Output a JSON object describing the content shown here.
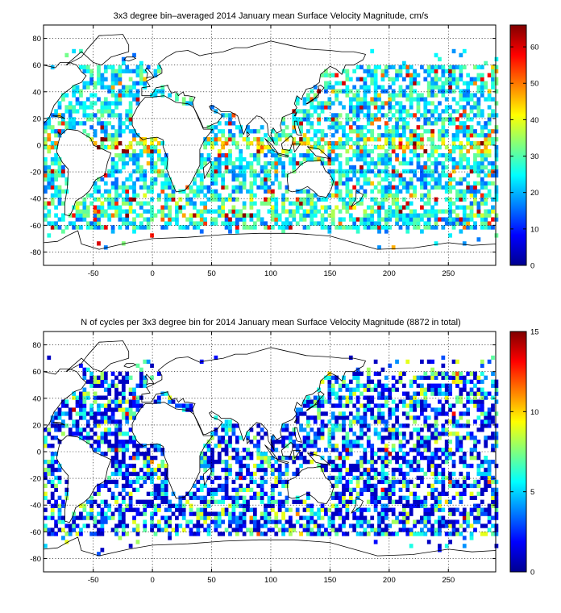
{
  "chart_data": [
    {
      "type": "heatmap",
      "title": "3x3 degree bin–averaged 2014 January mean Surface Velocity Magnitude, cm/s",
      "xlabel": "",
      "ylabel": "",
      "xlim": [
        -92,
        290
      ],
      "ylim": [
        -90,
        90
      ],
      "x_ticks": [
        "-50",
        "0",
        "50",
        "100",
        "150",
        "200",
        "250"
      ],
      "x_tick_values": [
        -50,
        0,
        50,
        100,
        150,
        200,
        250
      ],
      "y_ticks": [
        "80",
        "60",
        "40",
        "20",
        "0",
        "-20",
        "-40",
        "-60",
        "-80"
      ],
      "y_tick_values": [
        80,
        60,
        40,
        20,
        0,
        -20,
        -40,
        -60,
        -80
      ],
      "bin_size_deg": 3,
      "grid": true,
      "colormap": "jet",
      "colorbar": {
        "min": 0,
        "max": 66,
        "ticks": [
          "0",
          "10",
          "20",
          "30",
          "40",
          "50",
          "60"
        ],
        "tick_values": [
          0,
          10,
          20,
          30,
          40,
          50,
          60
        ],
        "placement": "right"
      }
    },
    {
      "type": "heatmap",
      "title": "N of cycles per 3x3 degree bin for 2014 January mean Surface Velocity Magnitude (8872 in total)",
      "xlabel": "",
      "ylabel": "",
      "xlim": [
        -92,
        290
      ],
      "ylim": [
        -90,
        90
      ],
      "x_ticks": [
        "-50",
        "0",
        "50",
        "100",
        "150",
        "200",
        "250"
      ],
      "x_tick_values": [
        -50,
        0,
        50,
        100,
        150,
        200,
        250
      ],
      "y_ticks": [
        "80",
        "60",
        "40",
        "20",
        "0",
        "-20",
        "-40",
        "-60",
        "-80"
      ],
      "y_tick_values": [
        80,
        60,
        40,
        20,
        0,
        -20,
        -40,
        -60,
        -80
      ],
      "bin_size_deg": 3,
      "grid": true,
      "colormap": "jet",
      "colorbar": {
        "min": 0,
        "max": 15,
        "ticks": [
          "0",
          "5",
          "10",
          "15"
        ],
        "tick_values": [
          0,
          5,
          10,
          15
        ],
        "placement": "right"
      }
    }
  ]
}
